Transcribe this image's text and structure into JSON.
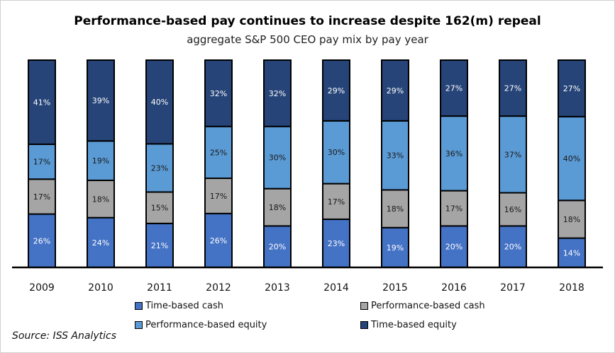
{
  "chart_data": {
    "type": "bar",
    "stacked": true,
    "title": "Performance-based pay continues to increase despite 162(m) repeal",
    "subtitle": "aggregate S&P 500 CEO pay mix by pay year",
    "categories": [
      "2009",
      "2010",
      "2011",
      "2012",
      "2013",
      "2014",
      "2015",
      "2016",
      "2017",
      "2018"
    ],
    "series": [
      {
        "name": "Time-based cash",
        "color": "#4472C4",
        "label_color": "#ffffff",
        "values": [
          26,
          24,
          21,
          26,
          20,
          23,
          19,
          20,
          20,
          14
        ]
      },
      {
        "name": "Performance-based cash",
        "color": "#A5A5A5",
        "label_color": "#1a1a1a",
        "values": [
          17,
          18,
          15,
          17,
          18,
          17,
          18,
          17,
          16,
          18
        ]
      },
      {
        "name": "Performance-based equity",
        "color": "#5B9BD5",
        "label_color": "#1a1a1a",
        "values": [
          17,
          19,
          23,
          25,
          30,
          30,
          33,
          36,
          37,
          40
        ]
      },
      {
        "name": "Time-based equity",
        "color": "#264478",
        "label_color": "#ffffff",
        "values": [
          41,
          39,
          40,
          32,
          32,
          29,
          29,
          27,
          27,
          27
        ]
      }
    ],
    "value_format": "percent",
    "ylim": [
      0,
      100
    ],
    "grid": false,
    "legend_position": "bottom"
  },
  "source": "Source: ISS Analytics"
}
